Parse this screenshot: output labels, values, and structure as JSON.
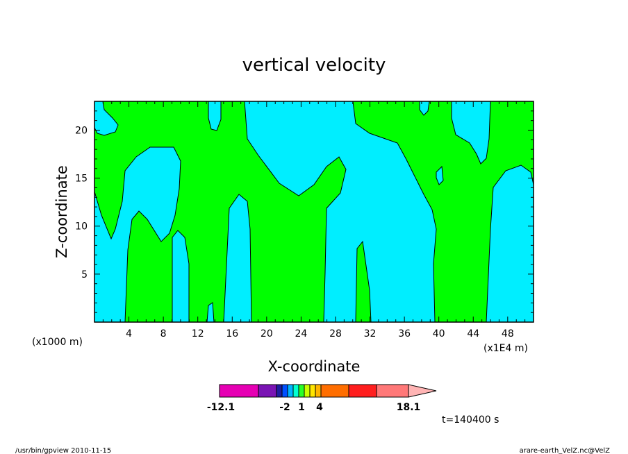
{
  "chart_data": {
    "type": "heatmap",
    "title": "vertical velocity",
    "xlabel": "X-coordinate",
    "ylabel": "Z-coordinate",
    "x_scale_note": "(x1000 m)",
    "x_unit_note": "(x1E4 m)",
    "xlim": [
      0,
      51
    ],
    "ylim": [
      0,
      23
    ],
    "x_ticks": [
      "4",
      "8",
      "12",
      "16",
      "20",
      "24",
      "28",
      "32",
      "36",
      "40",
      "44",
      "48"
    ],
    "y_ticks": [
      "5",
      "10",
      "15",
      "20"
    ],
    "fill_colors": {
      "positive": "#00ff00",
      "negative": "#00eeff"
    },
    "colorbar": {
      "colors": [
        "#e600b4",
        "#7a14b4",
        "#1e1ea0",
        "#0050ff",
        "#00b4ff",
        "#00ffd2",
        "#28ff28",
        "#c8ff00",
        "#ffe600",
        "#ffb400",
        "#ff6e00",
        "#ff1e1e",
        "#ff7878",
        "#ffb4b4"
      ],
      "labels": [
        "-12.1",
        "-2",
        "1",
        "4",
        "18.1"
      ]
    },
    "time_label": "t=140400 s",
    "footer_left": "/usr/bin/gpview   2010-11-15",
    "footer_right": "arare-earth_VelZ.nc@VelZ"
  }
}
